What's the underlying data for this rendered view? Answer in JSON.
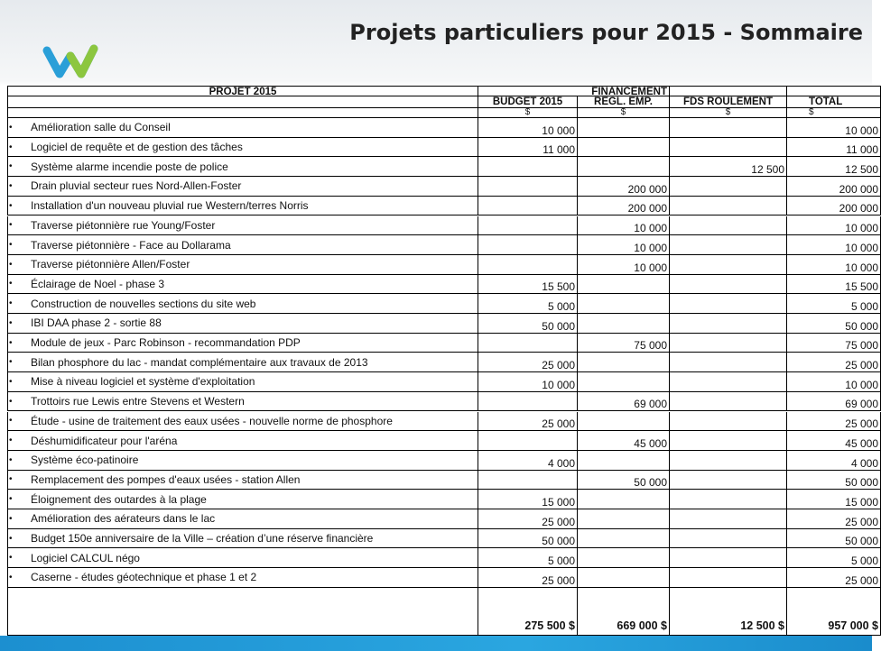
{
  "header": {
    "title": "Projets particuliers pour 2015 - Sommaire"
  },
  "table": {
    "head": [
      "PROJET 2015",
      "FINANCEMENT"
    ],
    "columns": [
      "BUDGET 2015",
      "REGL. EMP.",
      "FDS ROULEMENT",
      "TOTAL"
    ],
    "units": [
      "$",
      "$",
      "$",
      "$"
    ],
    "rows": [
      [
        "Amélioration salle du Conseil",
        "10 000",
        null,
        null,
        "10 000"
      ],
      [
        "Logiciel de requête et de gestion des tâches",
        "11 000",
        null,
        null,
        "11 000"
      ],
      [
        "Système alarme incendie poste de police",
        null,
        null,
        "12 500",
        "12 500"
      ],
      [
        "Drain pluvial secteur rues Nord-Allen-Foster",
        null,
        "200 000",
        null,
        "200 000"
      ],
      [
        "Installation d'un nouveau pluvial rue Western/terres Norris",
        null,
        "200 000",
        null,
        "200 000"
      ],
      [
        "Traverse piétonnière rue Young/Foster",
        null,
        "10 000",
        null,
        "10 000"
      ],
      [
        "Traverse piétonnière - Face au Dollarama",
        null,
        "10 000",
        null,
        "10 000"
      ],
      [
        "Traverse piétonnière Allen/Foster",
        null,
        "10 000",
        null,
        "10 000"
      ],
      [
        "Éclairage de Noel - phase 3",
        "15 500",
        null,
        null,
        "15 500"
      ],
      [
        "Construction de nouvelles sections du site web",
        "5 000",
        null,
        null,
        "5 000"
      ],
      [
        "IBI DAA phase 2 - sortie 88",
        "50 000",
        null,
        null,
        "50 000"
      ],
      [
        "Module de jeux - Parc Robinson - recommandation PDP",
        null,
        "75 000",
        null,
        "75 000"
      ],
      [
        "Bilan phosphore du lac - mandat complémentaire aux travaux de 2013",
        "25 000",
        null,
        null,
        "25 000"
      ],
      [
        "Mise à niveau logiciel et système d'exploitation",
        "10 000",
        null,
        null,
        "10 000"
      ],
      [
        "Trottoirs rue Lewis entre Stevens et Western",
        null,
        "69 000",
        null,
        "69 000"
      ],
      [
        "Étude - usine de traitement des eaux usées - nouvelle norme de phosphore",
        "25 000",
        null,
        null,
        "25 000"
      ],
      [
        "Déshumidificateur pour l'aréna",
        null,
        "45 000",
        null,
        "45 000"
      ],
      [
        "Système éco-patinoire",
        "4 000",
        null,
        null,
        "4 000"
      ],
      [
        "Remplacement des pompes d'eaux usées - station Allen",
        null,
        "50 000",
        null,
        "50 000"
      ],
      [
        "Éloignement des outardes à la plage",
        "15 000",
        null,
        null,
        "15 000"
      ],
      [
        "Amélioration des aérateurs dans le lac",
        "25 000",
        null,
        null,
        "25 000"
      ],
      [
        "Budget 150e anniversaire de la Ville – création d’une réserve financière",
        "50 000",
        null,
        null,
        "50 000"
      ],
      [
        "Logiciel CALCUL négo",
        "5 000",
        null,
        null,
        "5 000"
      ],
      [
        "Caserne - études géotechnique et phase 1 et 2",
        "25 000",
        null,
        null,
        "25 000"
      ]
    ],
    "totals": [
      "275 500 $",
      "669 000 $",
      "12 500 $",
      "957 000 $"
    ]
  }
}
